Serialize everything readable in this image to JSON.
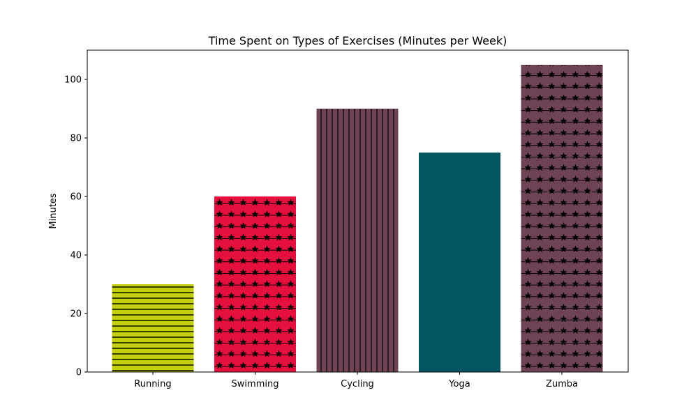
{
  "chart_data": {
    "type": "bar",
    "title": "Time Spent on Types of Exercises (Minutes per Week)",
    "xlabel": "",
    "ylabel": "Minutes",
    "categories": [
      "Running",
      "Swimming",
      "Cycling",
      "Yoga",
      "Zumba"
    ],
    "values": [
      30,
      60,
      90,
      75,
      105
    ],
    "colors": [
      "#c1d00f",
      "#e6103f",
      "#6e4355",
      "#045562",
      "#6e4355"
    ],
    "hatches": [
      "horizontal",
      "stars",
      "vertical",
      "none",
      "stars"
    ],
    "ylim": [
      0,
      110
    ],
    "yticks": [
      0,
      20,
      40,
      60,
      80,
      100
    ],
    "grid": false,
    "legend": "none"
  }
}
